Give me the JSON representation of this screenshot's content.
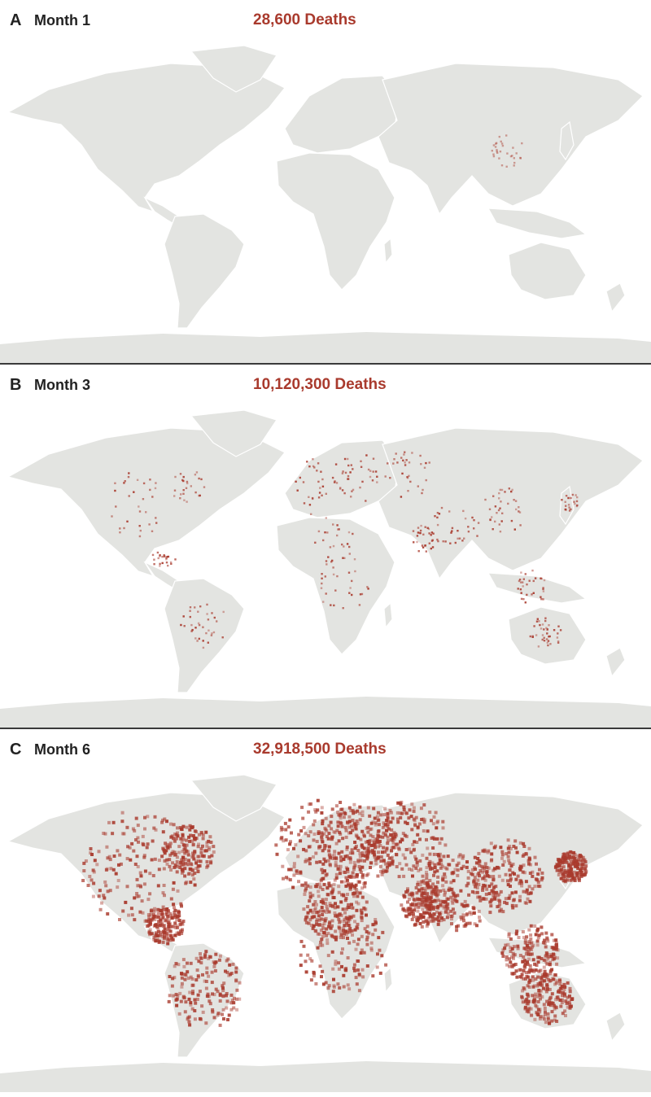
{
  "accent_color": "#a93a2d",
  "land_color": "#e3e4e1",
  "panels": [
    {
      "letter": "A",
      "label": "Month 1",
      "deaths": "28,600 Deaths",
      "spread": "low"
    },
    {
      "letter": "B",
      "label": "Month 3",
      "deaths": "10,120,300 Deaths",
      "spread": "medium"
    },
    {
      "letter": "C",
      "label": "Month 6",
      "deaths": "32,918,500 Deaths",
      "spread": "high"
    }
  ]
}
